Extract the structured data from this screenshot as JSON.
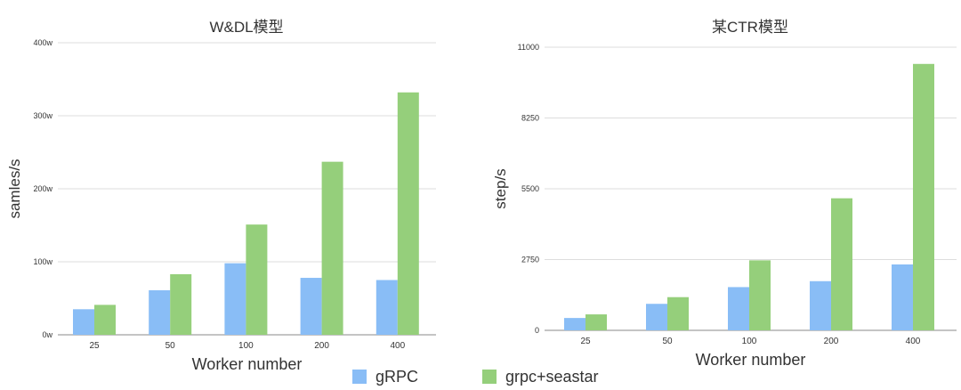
{
  "colors": {
    "grpc": "#89bdf6",
    "seastar": "#95cf7b",
    "grid": "#dddddd",
    "axis": "#888888",
    "text": "#333333"
  },
  "legend": [
    {
      "name": "gRPC",
      "color": "#89bdf6"
    },
    {
      "name": "grpc+seastar",
      "color": "#95cf7b"
    }
  ],
  "chart_data": [
    {
      "type": "bar",
      "title": "W&DL模型",
      "xlabel": "Worker number",
      "ylabel": "samles/s",
      "categories": [
        "25",
        "50",
        "100",
        "200",
        "400"
      ],
      "ylim": [
        0,
        4000000
      ],
      "yticks": [
        0,
        1000000,
        2000000,
        3000000,
        4000000
      ],
      "ytick_labels": [
        "0w",
        "100w",
        "200w",
        "300w",
        "400w"
      ],
      "grid": true,
      "series": [
        {
          "name": "gRPC",
          "values": [
            350000,
            610000,
            980000,
            780000,
            750000
          ]
        },
        {
          "name": "grpc+seastar",
          "values": [
            410000,
            830000,
            1510000,
            2370000,
            3320000
          ]
        }
      ]
    },
    {
      "type": "bar",
      "title": "某CTR模型",
      "xlabel": "Worker number",
      "ylabel": "step/s",
      "categories": [
        "25",
        "50",
        "100",
        "200",
        "400"
      ],
      "ylim": [
        0,
        11000
      ],
      "yticks": [
        0,
        2750,
        5500,
        8250,
        11000
      ],
      "ytick_labels": [
        "0",
        "2750",
        "5500",
        "8250",
        "11000"
      ],
      "grid": true,
      "series": [
        {
          "name": "gRPC",
          "values": [
            480,
            1030,
            1680,
            1910,
            2560
          ]
        },
        {
          "name": "grpc+seastar",
          "values": [
            620,
            1290,
            2720,
            5130,
            10350
          ]
        }
      ]
    }
  ]
}
